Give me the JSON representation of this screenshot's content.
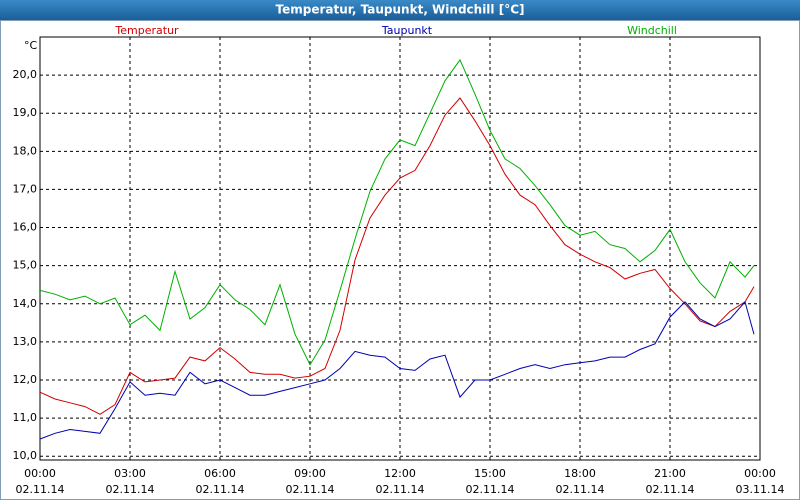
{
  "chart_data": {
    "type": "line",
    "title": "Temperatur, Taupunkt, Windchill [°C]",
    "y_unit": "°C",
    "x": [
      0,
      0.5,
      1,
      1.5,
      2,
      2.5,
      3,
      3.5,
      4,
      4.5,
      5,
      5.5,
      6,
      6.5,
      7,
      7.5,
      8,
      8.5,
      9,
      9.5,
      10,
      10.5,
      11,
      11.5,
      12,
      12.5,
      13,
      13.5,
      14,
      14.5,
      15,
      15.5,
      16,
      16.5,
      17,
      17.5,
      18,
      18.5,
      19,
      19.5,
      20,
      20.5,
      21,
      21.5,
      22,
      22.5,
      23,
      23.5,
      23.8
    ],
    "series": [
      {
        "name": "Temperatur",
        "color": "#d00000",
        "values": [
          11.68,
          11.5,
          11.4,
          11.3,
          11.1,
          11.35,
          12.2,
          11.95,
          12.0,
          12.05,
          12.6,
          12.5,
          12.85,
          12.55,
          12.2,
          12.15,
          12.15,
          12.05,
          12.1,
          12.3,
          13.3,
          15.15,
          16.25,
          16.85,
          17.3,
          17.5,
          18.15,
          18.95,
          19.4,
          18.8,
          18.15,
          17.4,
          16.85,
          16.6,
          16.05,
          15.55,
          15.3,
          15.1,
          14.95,
          14.65,
          14.8,
          14.9,
          14.4,
          14.0,
          13.55,
          13.4,
          13.8,
          14.05,
          14.45
        ]
      },
      {
        "name": "Taupunkt",
        "color": "#0000b0",
        "values": [
          10.45,
          10.6,
          10.7,
          10.65,
          10.6,
          11.25,
          11.95,
          11.6,
          11.65,
          11.6,
          12.2,
          11.9,
          12.0,
          11.8,
          11.6,
          11.6,
          11.7,
          11.8,
          11.9,
          12.0,
          12.3,
          12.75,
          12.65,
          12.6,
          12.3,
          12.25,
          12.55,
          12.65,
          11.55,
          12.0,
          12.0,
          12.15,
          12.3,
          12.4,
          12.3,
          12.4,
          12.45,
          12.5,
          12.6,
          12.6,
          12.8,
          12.95,
          13.65,
          14.05,
          13.6,
          13.4,
          13.6,
          14.05,
          13.2
        ]
      },
      {
        "name": "Windchill",
        "color": "#00b000",
        "values": [
          14.35,
          14.25,
          14.1,
          14.2,
          14.0,
          14.15,
          13.45,
          13.7,
          13.3,
          14.85,
          13.6,
          13.9,
          14.5,
          14.1,
          13.85,
          13.45,
          14.5,
          13.2,
          12.4,
          13.05,
          14.35,
          15.7,
          16.95,
          17.8,
          18.3,
          18.15,
          19.0,
          19.85,
          20.4,
          19.5,
          18.55,
          17.8,
          17.55,
          17.1,
          16.6,
          16.05,
          15.8,
          15.9,
          15.55,
          15.45,
          15.1,
          15.4,
          15.95,
          15.1,
          14.55,
          14.15,
          15.1,
          14.7,
          15.0
        ]
      }
    ],
    "xlim": [
      0,
      24
    ],
    "xticks": [
      {
        "value": 0,
        "label": "00:00"
      },
      {
        "value": 3,
        "label": "03:00"
      },
      {
        "value": 6,
        "label": "06:00"
      },
      {
        "value": 9,
        "label": "09:00"
      },
      {
        "value": 12,
        "label": "12:00"
      },
      {
        "value": 15,
        "label": "15:00"
      },
      {
        "value": 18,
        "label": "18:00"
      },
      {
        "value": 21,
        "label": "21:00"
      },
      {
        "value": 24,
        "label": "00:00"
      }
    ],
    "xtick_dates": [
      "02.11.14",
      "02.11.14",
      "02.11.14",
      "02.11.14",
      "02.11.14",
      "02.11.14",
      "02.11.14",
      "02.11.14",
      "03.11.14"
    ],
    "ylim": [
      9.9,
      21.0
    ],
    "yticks": [
      {
        "value": 10,
        "label": "10,0"
      },
      {
        "value": 11,
        "label": "11,0"
      },
      {
        "value": 12,
        "label": "12,0"
      },
      {
        "value": 13,
        "label": "13,0"
      },
      {
        "value": 14,
        "label": "14,0"
      },
      {
        "value": 15,
        "label": "15,0"
      },
      {
        "value": 16,
        "label": "16,0"
      },
      {
        "value": 17,
        "label": "17,0"
      },
      {
        "value": 18,
        "label": "18,0"
      },
      {
        "value": 19,
        "label": "19,0"
      },
      {
        "value": 20,
        "label": "20,0"
      }
    ],
    "grid": true
  }
}
